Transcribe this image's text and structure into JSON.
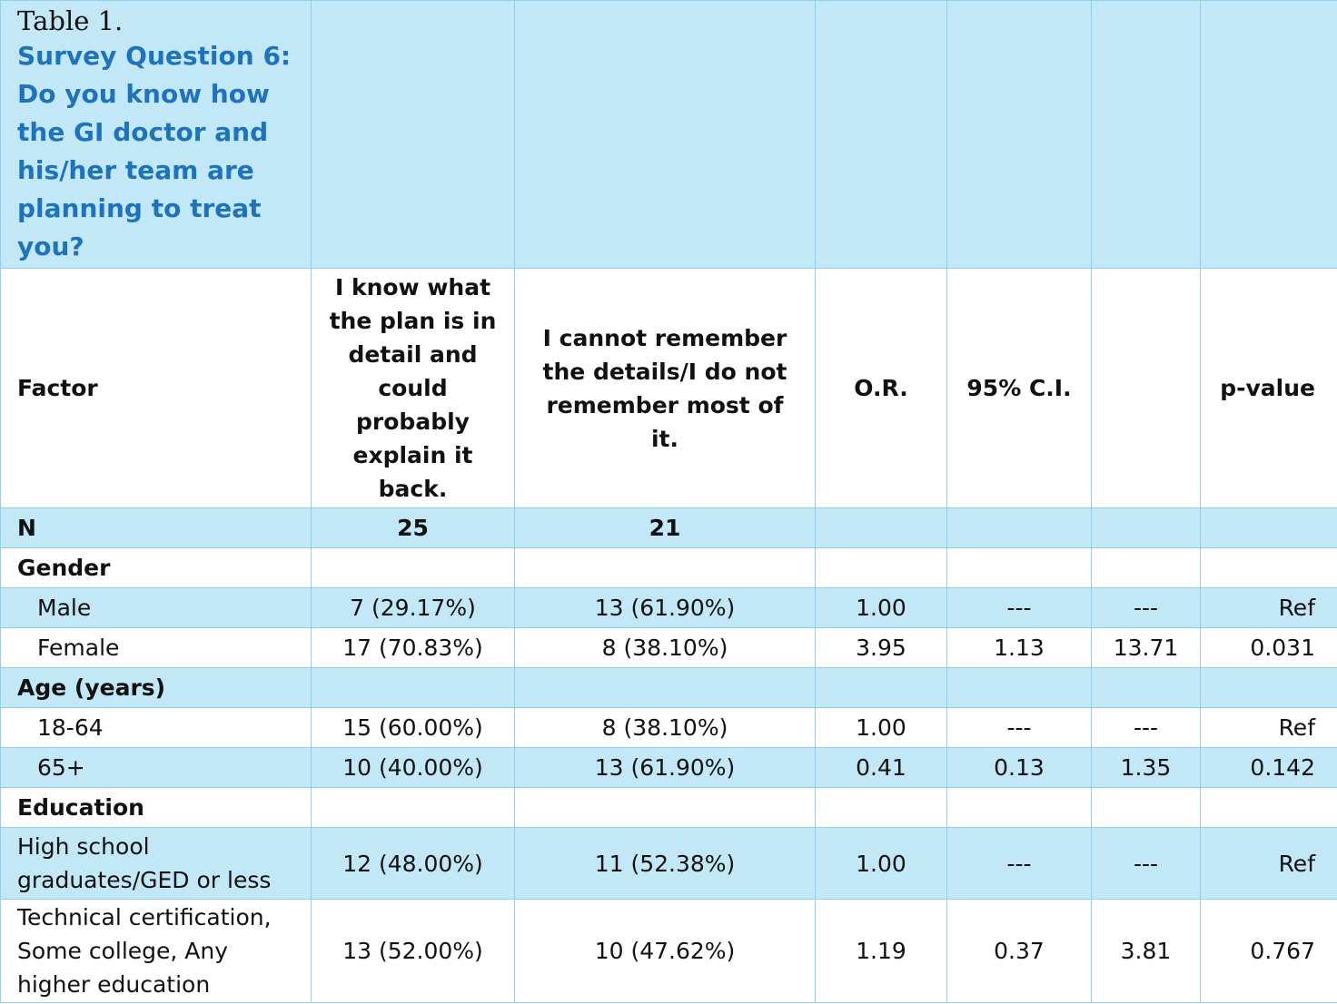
{
  "table": {
    "caption": "Table 1.",
    "question_lines": [
      "Survey Question 6:",
      "Do you know how",
      "the GI doctor and",
      "his/her team are",
      "planning to treat",
      "you?"
    ],
    "headers": {
      "factor": "Factor",
      "col1_lines": [
        "I know what",
        "the plan is in",
        "detail and",
        "could",
        "probably",
        "explain it",
        "back."
      ],
      "col2_lines": [
        "I cannot remember",
        "the details/I do not",
        "remember most of it."
      ],
      "or": "O.R.",
      "ci": "95% C.I.",
      "pvalue": "p-value"
    },
    "n_row": {
      "label": "N",
      "col1": "25",
      "col2": "21"
    },
    "sections": [
      {
        "title": "Gender",
        "rows": [
          {
            "label": "Male",
            "col1": "7 (29.17%)",
            "col2": "13 (61.90%)",
            "or": "1.00",
            "ci_low": "---",
            "ci_high": "---",
            "p": "Ref"
          },
          {
            "label": "Female",
            "col1": "17 (70.83%)",
            "col2": "8 (38.10%)",
            "or": "3.95",
            "ci_low": "1.13",
            "ci_high": "13.71",
            "p": "0.031"
          }
        ]
      },
      {
        "title": "Age (years)",
        "rows": [
          {
            "label": "18-64",
            "col1": "15 (60.00%)",
            "col2": "8 (38.10%)",
            "or": "1.00",
            "ci_low": "---",
            "ci_high": "---",
            "p": "Ref"
          },
          {
            "label": "65+",
            "col1": "10 (40.00%)",
            "col2": "13 (61.90%)",
            "or": "0.41",
            "ci_low": "0.13",
            "ci_high": "1.35",
            "p": "0.142"
          }
        ]
      },
      {
        "title": "Education",
        "rows": [
          {
            "label_lines": [
              "High school",
              "graduates/GED or less"
            ],
            "col1": "12 (48.00%)",
            "col2": "11 (52.38%)",
            "or": "1.00",
            "ci_low": "---",
            "ci_high": "---",
            "p": "Ref"
          },
          {
            "label_lines": [
              "Technical certification,",
              "Some college, Any",
              "higher education"
            ],
            "col1": "13 (52.00%)",
            "col2": "10 (47.62%)",
            "or": "1.19",
            "ci_low": "0.37",
            "ci_high": "3.81",
            "p": "0.767"
          }
        ]
      }
    ],
    "colors": {
      "blue_fill": "#c2e7f7",
      "border": "#8fd0ee",
      "question_text": "#1e73be"
    }
  }
}
